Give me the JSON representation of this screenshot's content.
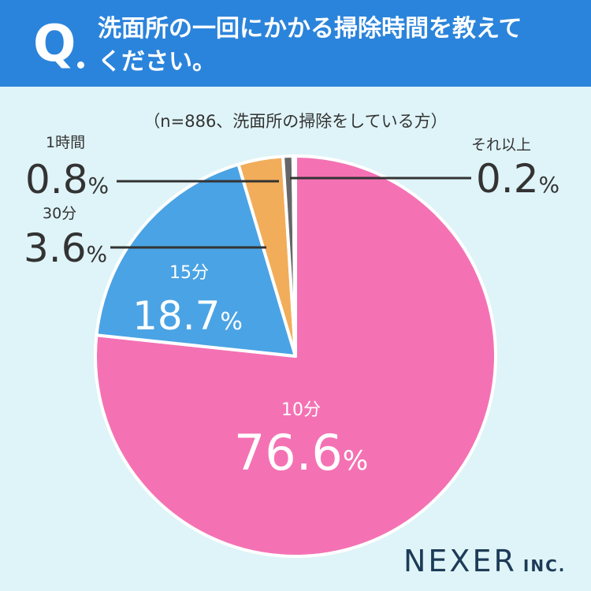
{
  "header": {
    "q_letter": "Q",
    "question_line1": "洗面所の一回にかかる掃除時間を教えて",
    "question_line2": "ください。"
  },
  "sample_note": "（n=886、洗面所の掃除をしている方）",
  "colors": {
    "header_bg": "#2b84db",
    "background": "#dff4f8",
    "slice_10min": "#f472b4",
    "slice_15min": "#4aa3e4",
    "slice_30min": "#f2ad5a",
    "slice_1hour": "#666666",
    "slice_more": "#a9a9a9"
  },
  "chart_data": {
    "type": "pie",
    "start": "12 o'clock",
    "direction": "clockwise",
    "slices": [
      {
        "label": "10分",
        "value": 76.6,
        "value_text": "76.6",
        "unit": "%"
      },
      {
        "label": "15分",
        "value": 18.7,
        "value_text": "18.7",
        "unit": "%"
      },
      {
        "label": "30分",
        "value": 3.6,
        "value_text": "3.6",
        "unit": "%"
      },
      {
        "label": "1時間",
        "value": 0.8,
        "value_text": "0.8",
        "unit": "%"
      },
      {
        "label": "それ以上",
        "value": 0.2,
        "value_text": "0.2",
        "unit": "%"
      }
    ]
  },
  "logo": {
    "main": "NEXER",
    "sub": "INC."
  }
}
